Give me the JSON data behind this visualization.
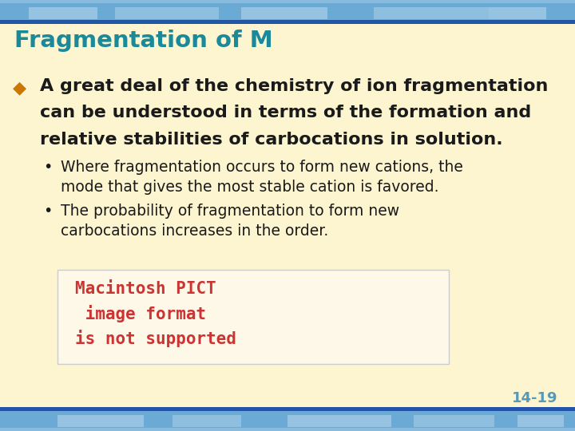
{
  "title": "Fragmentation of M",
  "title_color": "#1a8a9a",
  "title_fontsize": 21,
  "bg_color": "#fdf5d0",
  "header_band_color": "#4a8ab5",
  "header_band_color2": "#6aaad5",
  "bullet_color": "#cc7700",
  "bullet_diamond": "◆",
  "main_text_lines": [
    "A great deal of the chemistry of ion fragmentation",
    "can be understood in terms of the formation and",
    "relative stabilities of carbocations in solution."
  ],
  "main_text_color": "#1a1a1a",
  "main_text_fontsize": 16,
  "sub_bullet1_line1": "Where fragmentation occurs to form new cations, the",
  "sub_bullet1_line2": "mode that gives the most stable cation is favored.",
  "sub_bullet2_line1": "The probability of fragmentation to form new",
  "sub_bullet2_line2": "carbocations increases in the order.",
  "sub_text_color": "#1a1a1a",
  "sub_text_fontsize": 13.5,
  "page_number": "14-19",
  "page_number_color": "#5599bb",
  "pict_lines": [
    "Macintosh PICT",
    " image format",
    "is not supported"
  ],
  "pict_color": "#cc3333",
  "pict_fontsize": 15
}
